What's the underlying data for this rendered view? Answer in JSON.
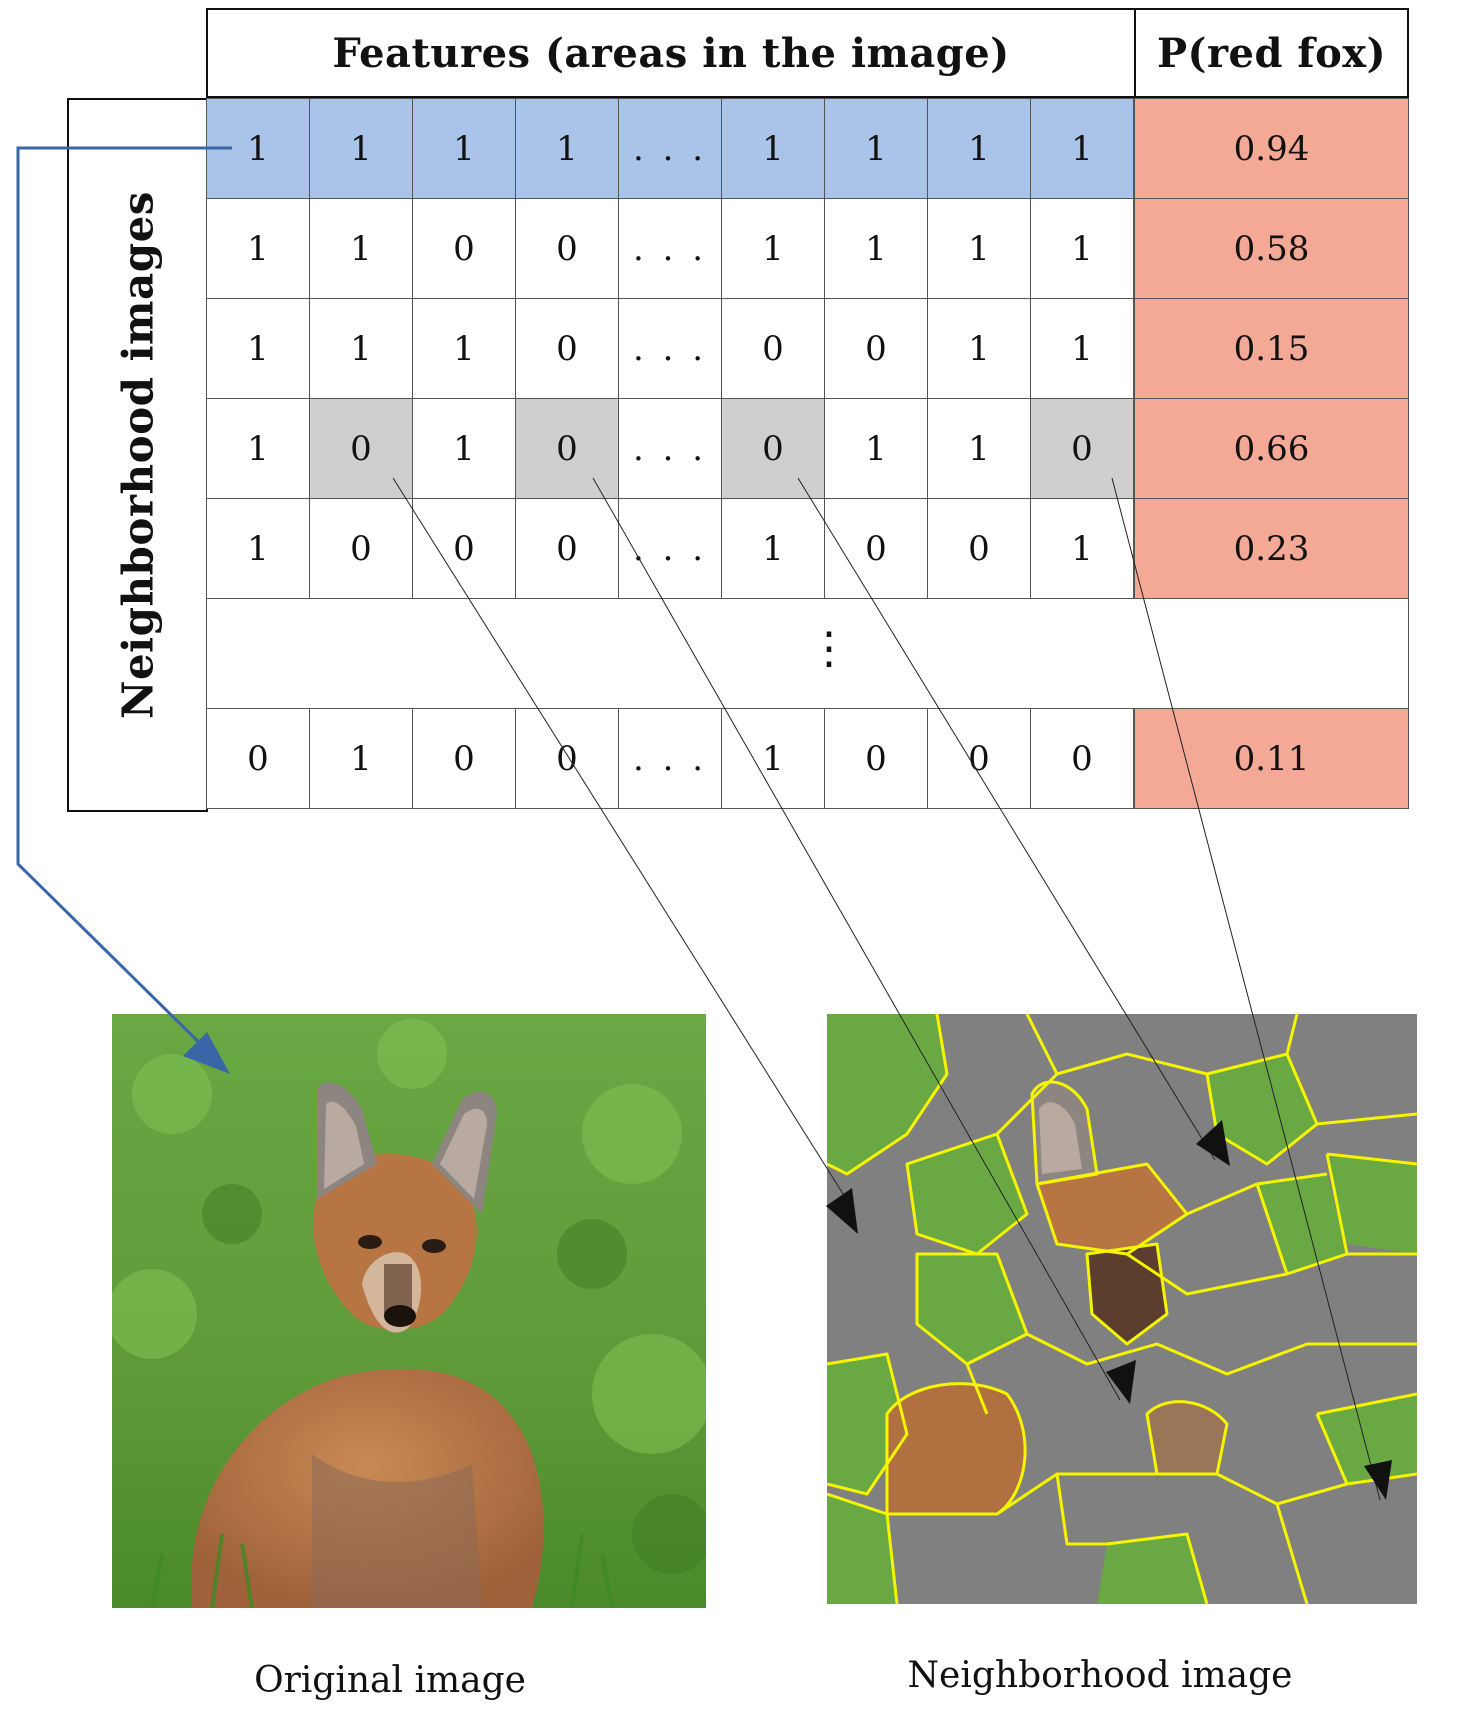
{
  "table": {
    "column_header": "Features (areas in the image)",
    "prob_header": "P(red fox)",
    "row_header": "Neighborhood images",
    "rows": [
      {
        "cells": [
          "1",
          "1",
          "1",
          "1",
          "...",
          "1",
          "1",
          "1",
          "1"
        ],
        "prob": "0.94",
        "highlight": "blue"
      },
      {
        "cells": [
          "1",
          "1",
          "0",
          "0",
          "...",
          "1",
          "1",
          "1",
          "1"
        ],
        "prob": "0.58"
      },
      {
        "cells": [
          "1",
          "1",
          "1",
          "0",
          "...",
          "0",
          "0",
          "1",
          "1"
        ],
        "prob": "0.15"
      },
      {
        "cells": [
          "1",
          "0",
          "1",
          "0",
          "...",
          "0",
          "1",
          "1",
          "0"
        ],
        "prob": "0.66",
        "grey_columns": [
          1,
          3,
          5,
          8
        ]
      },
      {
        "cells": [
          "1",
          "0",
          "0",
          "0",
          "...",
          "1",
          "0",
          "0",
          "1"
        ],
        "prob": "0.23"
      },
      {
        "cells": [
          "0",
          "1",
          "0",
          "0",
          "...",
          "1",
          "0",
          "0",
          "0"
        ],
        "prob": "0.11"
      }
    ],
    "vertical_ellipsis": "⋮"
  },
  "images": {
    "original_caption": "Original image",
    "neighborhood_caption": "Neighborhood image"
  },
  "colors": {
    "selected_row": "#a9c4e8",
    "probability_column": "#f4a896",
    "masked_cell": "#cfcfcf",
    "arrow_blue": "#3a66a8",
    "superpixel_border": "#f5f500",
    "masked_region": "#808080"
  }
}
